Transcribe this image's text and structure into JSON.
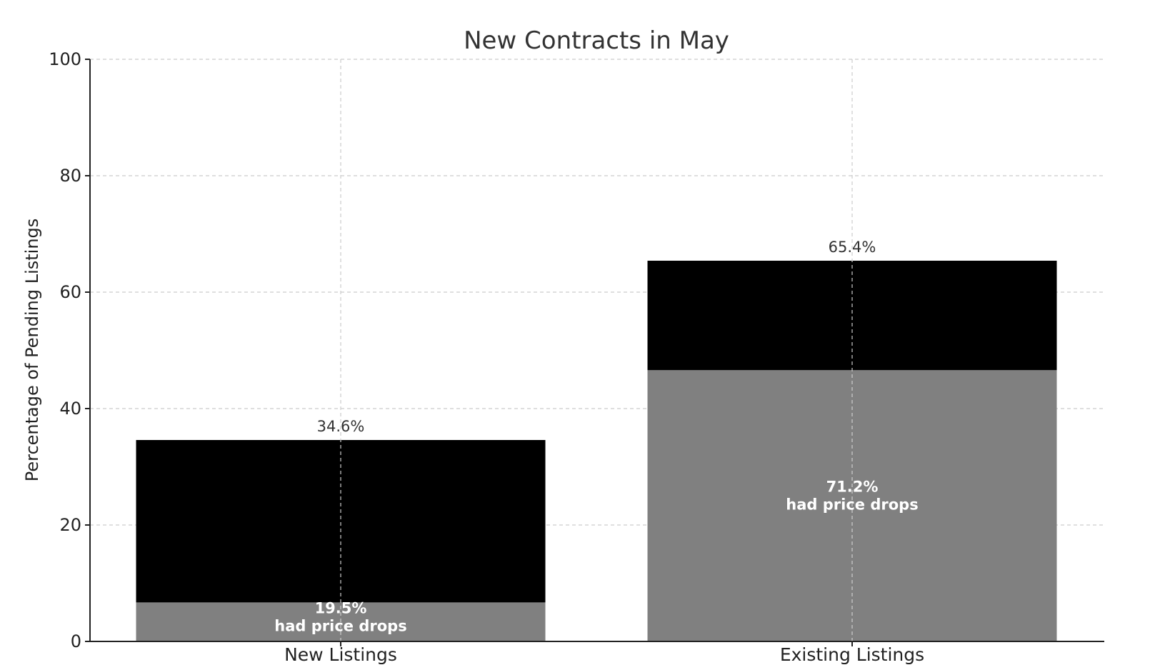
{
  "chart_data": {
    "type": "bar",
    "stacked": true,
    "title": "New Contracts in May",
    "xlabel": "",
    "ylabel": "Percentage of Pending Listings",
    "categories": [
      "New Listings",
      "Existing Listings"
    ],
    "ylim": [
      0,
      100
    ],
    "yticks": [
      0,
      20,
      40,
      60,
      80,
      100
    ],
    "grid": true,
    "series": [
      {
        "values": [
          6.7,
          46.6
        ],
        "color": "#808080"
      },
      {
        "values": [
          27.9,
          18.8
        ],
        "color": "#000000"
      }
    ],
    "totals": [
      34.6,
      65.4
    ],
    "total_labels": [
      "34.6%",
      "65.4%"
    ],
    "inner_labels": [
      {
        "pct": "19.5%",
        "text": "had price drops"
      },
      {
        "pct": "71.2%",
        "text": "had price drops"
      }
    ]
  }
}
